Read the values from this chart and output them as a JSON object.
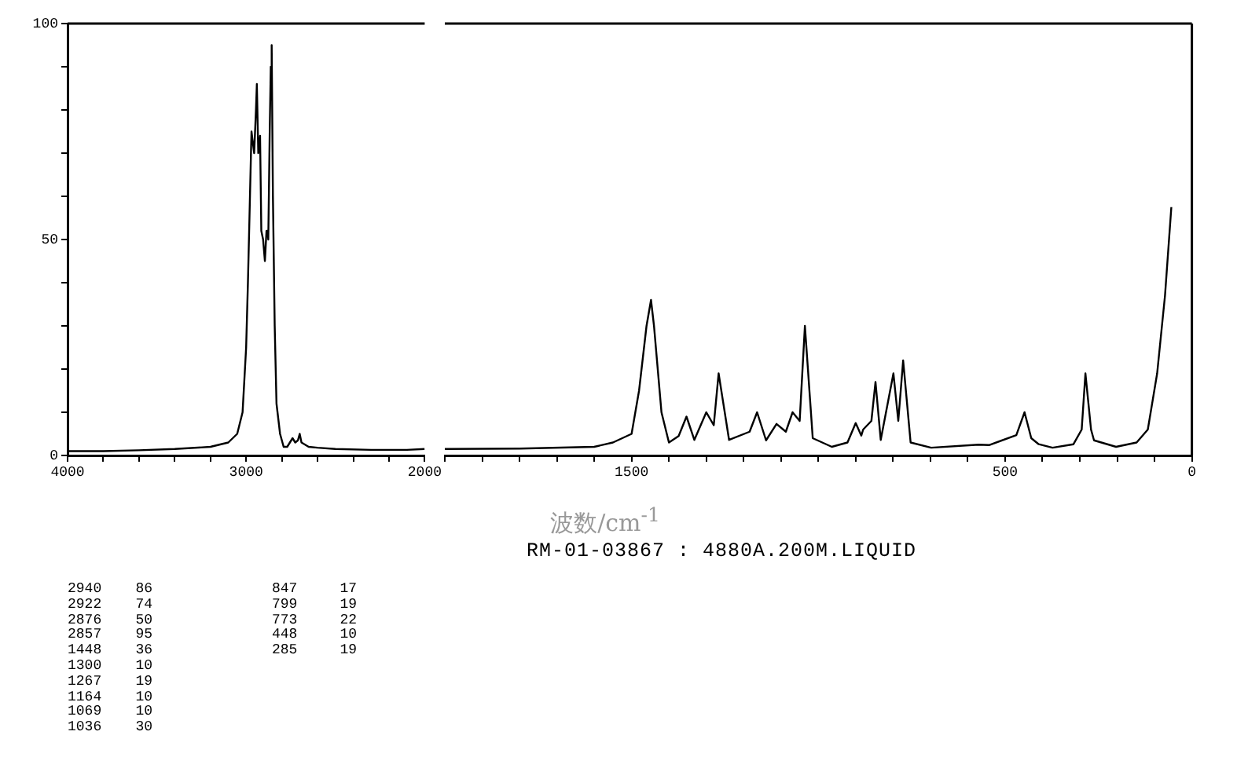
{
  "chart_data": [
    {
      "type": "line",
      "xlim": [
        4000,
        2000
      ],
      "xticks": [
        4000,
        {
          "value": 3800,
          "label": null
        },
        {
          "value": 3600,
          "label": null
        },
        {
          "value": 3400,
          "label": null
        },
        {
          "value": 3200,
          "label": null
        },
        3000,
        {
          "value": 2800,
          "label": null
        },
        {
          "value": 2600,
          "label": null
        },
        {
          "value": 2400,
          "label": null
        },
        {
          "value": 2200,
          "label": null
        },
        2000
      ],
      "ylim": [
        0,
        100
      ],
      "yticks": [
        0,
        {
          "value": 10,
          "label": null
        },
        {
          "value": 20,
          "label": null
        },
        {
          "value": 30,
          "label": null
        },
        {
          "value": 40,
          "label": null
        },
        50,
        {
          "value": 60,
          "label": null
        },
        {
          "value": 70,
          "label": null
        },
        {
          "value": 80,
          "label": null
        },
        {
          "value": 90,
          "label": null
        },
        100
      ],
      "grid": false,
      "marker": "none",
      "series": [
        {
          "color": "#000000",
          "x": [
            4000,
            3800,
            3600,
            3400,
            3200,
            3100,
            3050,
            3020,
            3000,
            2990,
            2970,
            2955,
            2945,
            2940,
            2932,
            2922,
            2915,
            2905,
            2895,
            2886,
            2880,
            2876,
            2868,
            2862,
            2857,
            2850,
            2840,
            2830,
            2810,
            2790,
            2770,
            2740,
            2725,
            2710,
            2700,
            2690,
            2650,
            2600,
            2500,
            2300,
            2100,
            2000
          ],
          "values": [
            1,
            1,
            1.2,
            1.5,
            2,
            3,
            5,
            10,
            25,
            40,
            75,
            70,
            80,
            86,
            70,
            74,
            52,
            50,
            45,
            52,
            52,
            50,
            75,
            90,
            95,
            60,
            30,
            12,
            5,
            2,
            2,
            4,
            3,
            3.5,
            5,
            3,
            2,
            1.8,
            1.5,
            1.3,
            1.3,
            1.5
          ]
        }
      ],
      "annotations": [
        "2940    86",
        "2922    74",
        "2876    50",
        "2857    95",
        "1448    36",
        "1300    10",
        "1267    19",
        "1164    10",
        "1069    10",
        "1036    30",
        "847     17",
        "799     19",
        "773     22",
        "448     10",
        "285     19"
      ]
    },
    {
      "type": "line",
      "xlim": [
        2000,
        0
      ],
      "xticks": [
        {
          "value": 2000,
          "label": null
        },
        {
          "value": 1900,
          "label": null
        },
        {
          "value": 1800,
          "label": null
        },
        {
          "value": 1700,
          "label": null
        },
        {
          "value": 1600,
          "label": null
        },
        1500,
        {
          "value": 1400,
          "label": null
        },
        {
          "value": 1300,
          "label": null
        },
        {
          "value": 1200,
          "label": null
        },
        {
          "value": 1100,
          "label": null
        },
        {
          "value": 1000,
          "label": null
        },
        {
          "value": 900,
          "label": null
        },
        {
          "value": 800,
          "label": null
        },
        {
          "value": 700,
          "label": null
        },
        {
          "value": 600,
          "label": null
        },
        500,
        {
          "value": 400,
          "label": null
        },
        {
          "value": 300,
          "label": null
        },
        {
          "value": 200,
          "label": null
        },
        {
          "value": 100,
          "label": null
        },
        0
      ],
      "ylim": [
        0,
        100
      ],
      "tick_labels": "x",
      "grid": false,
      "marker": "none",
      "xlabel": "波数/cm$^{-1}$",
      "series": [
        {
          "color": "#000000",
          "x": [
            2000,
            1800,
            1600,
            1550,
            1500,
            1480,
            1460,
            1448,
            1440,
            1420,
            1400,
            1374,
            1353,
            1332,
            1300,
            1280,
            1267,
            1239,
            1184,
            1164,
            1140,
            1112,
            1087,
            1069,
            1050,
            1036,
            1015,
            964,
            922,
            900,
            885,
            880,
            858,
            847,
            833,
            799,
            786,
            773,
            753,
            698,
            571,
            543,
            470,
            448,
            430,
            410,
            373,
            317,
            295,
            285,
            270,
            262,
            203,
            148,
            118,
            93,
            72,
            55
          ],
          "values": [
            1.5,
            1.6,
            2,
            3,
            5,
            15,
            30,
            36,
            30,
            10,
            3,
            4.5,
            9,
            3.6,
            10,
            7,
            19,
            3.6,
            5.5,
            10,
            3.5,
            7.3,
            5.5,
            10,
            8,
            30,
            4,
            2,
            3,
            7.5,
            4.6,
            6,
            8,
            17,
            3.6,
            19,
            8,
            22,
            3,
            1.8,
            2.5,
            2.4,
            4.7,
            10,
            4,
            2.6,
            1.8,
            2.6,
            6,
            19,
            6,
            3.5,
            2,
            3,
            6,
            19,
            37,
            57.5
          ]
        }
      ],
      "annotations": [
        "RM-01-03867 : 4880A.200M.LIQUID"
      ]
    }
  ]
}
